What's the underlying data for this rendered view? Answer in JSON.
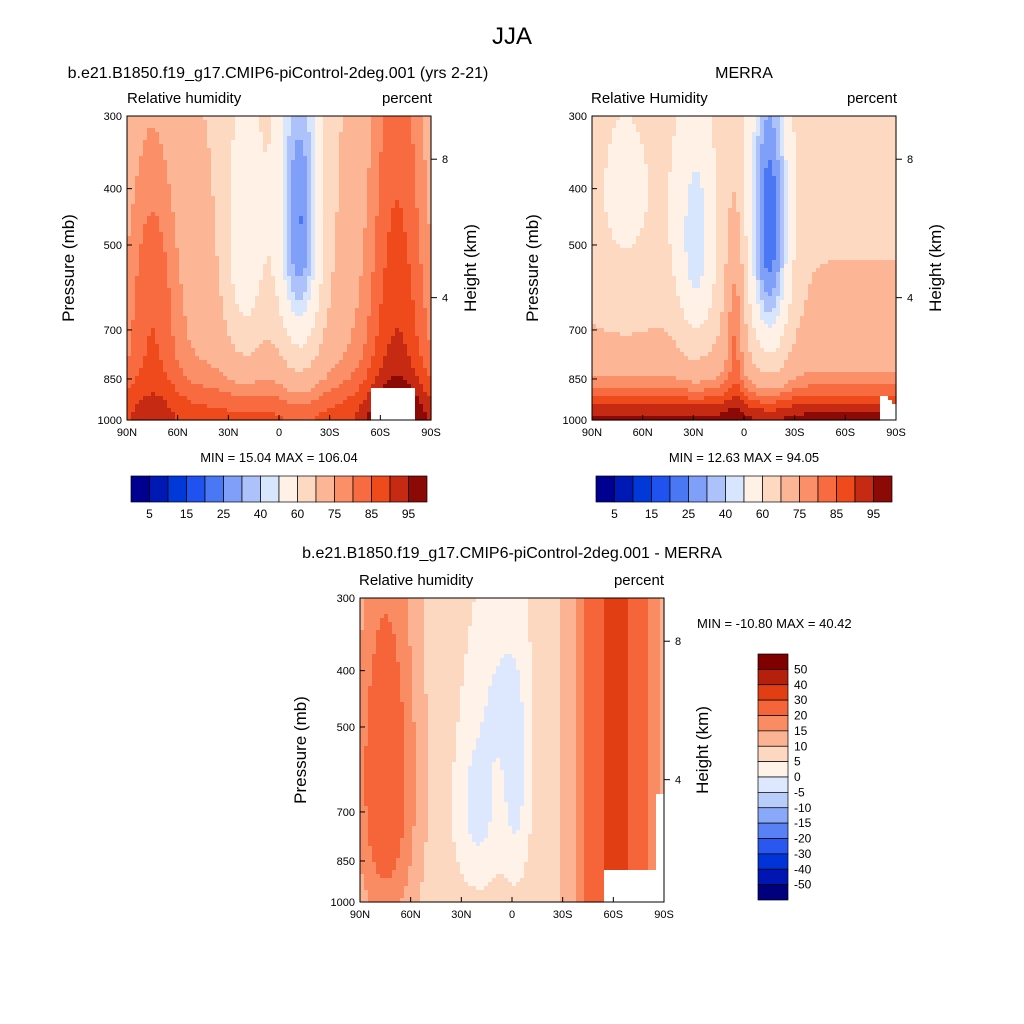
{
  "figure_title": "JJA",
  "colors": {
    "rh": [
      "#000090",
      "#0018b4",
      "#0039d8",
      "#2052f0",
      "#4a78f5",
      "#7f9ff8",
      "#adc2fa",
      "#d7e5fd",
      "#fff1e6",
      "#fdd9c2",
      "#fcb595",
      "#fb8f68",
      "#f86a3f",
      "#ef4a1c",
      "#c72a12",
      "#8c0a06"
    ],
    "diff": [
      "#00007f",
      "#0015b2",
      "#0033d8",
      "#2a57f0",
      "#5a80f5",
      "#8aa8f8",
      "#b9cdfb",
      "#dde8fe",
      "#fff2e8",
      "#fdd8c1",
      "#fcb393",
      "#fa8c63",
      "#f6653a",
      "#e23e13",
      "#b4200c",
      "#800000"
    ]
  },
  "chart_data": [
    {
      "type": "heatmap",
      "title": "b.e21.B1850.f19_g17.CMIP6-piControl-2deg.001 (yrs 2-21)",
      "subtitle_left": "Relative humidity",
      "subtitle_right": "percent",
      "ylabel": "Pressure (mb)",
      "y2label": "Height (km)",
      "xticks": [
        "90N",
        "60N",
        "30N",
        "0",
        "30S",
        "60S",
        "90S"
      ],
      "yticks": [
        "300",
        "400",
        "500",
        "700",
        "850",
        "1000"
      ],
      "y2ticks": [
        "8",
        "4"
      ],
      "stats": "MIN = 15.04  MAX = 106.04",
      "colorbar_labels": [
        "5",
        "15",
        "25",
        "40",
        "60",
        "75",
        "85",
        "95"
      ],
      "colorbar_levels": [
        5,
        10,
        15,
        20,
        25,
        30,
        35,
        40,
        50,
        60,
        70,
        75,
        80,
        85,
        90,
        95
      ],
      "colorbar_orientation": "horizontal"
    },
    {
      "type": "heatmap",
      "title": "MERRA",
      "subtitle_left": "Relative Humidity",
      "subtitle_right": "percent",
      "ylabel": "Pressure (mb)",
      "y2label": "Height (km)",
      "xticks": [
        "90N",
        "60N",
        "30N",
        "0",
        "30S",
        "60S",
        "90S"
      ],
      "yticks": [
        "300",
        "400",
        "500",
        "700",
        "850",
        "1000"
      ],
      "y2ticks": [
        "8",
        "4"
      ],
      "stats": "MIN = 12.63  MAX = 94.05",
      "colorbar_labels": [
        "5",
        "15",
        "25",
        "40",
        "60",
        "75",
        "85",
        "95"
      ],
      "colorbar_levels": [
        5,
        10,
        15,
        20,
        25,
        30,
        35,
        40,
        50,
        60,
        70,
        75,
        80,
        85,
        90,
        95
      ],
      "colorbar_orientation": "horizontal"
    },
    {
      "type": "heatmap",
      "title": "b.e21.B1850.f19_g17.CMIP6-piControl-2deg.001 - MERRA",
      "subtitle_left": "Relative humidity",
      "subtitle_right": "percent",
      "ylabel": "Pressure (mb)",
      "y2label": "Height (km)",
      "xticks": [
        "90N",
        "60N",
        "30N",
        "0",
        "30S",
        "60S",
        "90S"
      ],
      "yticks": [
        "300",
        "400",
        "500",
        "700",
        "850",
        "1000"
      ],
      "y2ticks": [
        "8",
        "4"
      ],
      "stats": "MIN = -10.80  MAX =  40.42",
      "colorbar_labels": [
        "50",
        "40",
        "30",
        "20",
        "15",
        "10",
        "5",
        "0",
        "-5",
        "-10",
        "-15",
        "-20",
        "-30",
        "-40",
        "-50"
      ],
      "colorbar_levels": [
        -50,
        -40,
        -30,
        -20,
        -15,
        -10,
        -5,
        0,
        5,
        10,
        15,
        20,
        30,
        40,
        50
      ],
      "colorbar_orientation": "vertical"
    }
  ]
}
